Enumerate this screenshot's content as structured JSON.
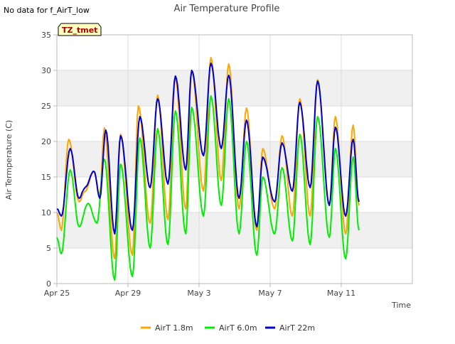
{
  "title": "Air Temperature Profile",
  "notice": "No data for f_AirT_low",
  "badge": "TZ_tmet",
  "colors": {
    "band": "#f0f0f0",
    "grid": "#dddddd",
    "axis": "#bbbbbb",
    "text": "#444444",
    "badge_bg": "#ffffc0",
    "badge_text": "#aa0000"
  },
  "chart_data": {
    "type": "line",
    "title": "Air Temperature Profile",
    "xlabel": "Time",
    "ylabel": "Air Termperature (C)",
    "ylim": [
      0,
      35
    ],
    "xlim": [
      "2024-04-25",
      "2024-05-15"
    ],
    "yticks": [
      0,
      5,
      10,
      15,
      20,
      25,
      30,
      35
    ],
    "xticks": [
      {
        "date": "2024-04-25",
        "label": "Apr 25"
      },
      {
        "date": "2024-04-29",
        "label": "Apr 29"
      },
      {
        "date": "2024-05-03",
        "label": "May 3"
      },
      {
        "date": "2024-05-07",
        "label": "May 7"
      },
      {
        "date": "2024-05-11",
        "label": "May 11"
      }
    ],
    "grid": true,
    "legend_position": "bottom",
    "series": [
      {
        "name": "AirT 1.8m",
        "color": "#ffa500",
        "points": [
          [
            "2024-04-25 00:00",
            10.0
          ],
          [
            "2024-04-25 06:00",
            7.5
          ],
          [
            "2024-04-25 16:00",
            20.3
          ],
          [
            "2024-04-26 06:00",
            11.5
          ],
          [
            "2024-04-26 14:00",
            13.0
          ],
          [
            "2024-04-27 02:00",
            15.8
          ],
          [
            "2024-04-27 10:00",
            12.5
          ],
          [
            "2024-04-27 16:00",
            21.9
          ],
          [
            "2024-04-28 06:00",
            3.5
          ],
          [
            "2024-04-28 14:00",
            21.0
          ],
          [
            "2024-04-29 06:00",
            4.0
          ],
          [
            "2024-04-29 14:00",
            25.0
          ],
          [
            "2024-04-30 06:00",
            8.5
          ],
          [
            "2024-04-30 16:00",
            26.5
          ],
          [
            "2024-05-01 06:00",
            9.0
          ],
          [
            "2024-05-01 16:00",
            29.0
          ],
          [
            "2024-05-02 06:00",
            10.5
          ],
          [
            "2024-05-02 14:00",
            30.0
          ],
          [
            "2024-05-03 06:00",
            13.0
          ],
          [
            "2024-05-03 16:00",
            31.8
          ],
          [
            "2024-05-04 06:00",
            14.5
          ],
          [
            "2024-05-04 16:00",
            30.9
          ],
          [
            "2024-05-05 06:00",
            10.5
          ],
          [
            "2024-05-05 16:00",
            24.7
          ],
          [
            "2024-05-06 06:00",
            7.5
          ],
          [
            "2024-05-06 14:00",
            19.0
          ],
          [
            "2024-05-07 06:00",
            10.5
          ],
          [
            "2024-05-07 16:00",
            20.8
          ],
          [
            "2024-05-08 06:00",
            9.5
          ],
          [
            "2024-05-08 16:00",
            26.0
          ],
          [
            "2024-05-09 06:00",
            9.5
          ],
          [
            "2024-05-09 16:00",
            28.7
          ],
          [
            "2024-05-10 08:00",
            11.0
          ],
          [
            "2024-05-10 16:00",
            23.5
          ],
          [
            "2024-05-11 06:00",
            7.0
          ],
          [
            "2024-05-11 16:00",
            22.3
          ],
          [
            "2024-05-12 00:00",
            11.0
          ]
        ]
      },
      {
        "name": "AirT 6.0m",
        "color": "#00ee00",
        "points": [
          [
            "2024-04-25 00:00",
            6.5
          ],
          [
            "2024-04-25 06:00",
            4.2
          ],
          [
            "2024-04-25 18:00",
            16.0
          ],
          [
            "2024-04-26 06:00",
            8.0
          ],
          [
            "2024-04-26 18:00",
            11.3
          ],
          [
            "2024-04-27 06:00",
            8.5
          ],
          [
            "2024-04-27 16:00",
            17.5
          ],
          [
            "2024-04-28 06:00",
            0.5
          ],
          [
            "2024-04-28 14:00",
            16.8
          ],
          [
            "2024-04-29 06:00",
            1.0
          ],
          [
            "2024-04-29 16:00",
            20.5
          ],
          [
            "2024-04-30 06:00",
            5.0
          ],
          [
            "2024-04-30 16:00",
            21.8
          ],
          [
            "2024-05-01 06:00",
            5.5
          ],
          [
            "2024-05-01 16:00",
            24.3
          ],
          [
            "2024-05-02 06:00",
            7.0
          ],
          [
            "2024-05-02 14:00",
            24.8
          ],
          [
            "2024-05-03 06:00",
            9.5
          ],
          [
            "2024-05-03 16:00",
            26.4
          ],
          [
            "2024-05-04 06:00",
            11.0
          ],
          [
            "2024-05-04 16:00",
            26.0
          ],
          [
            "2024-05-05 06:00",
            7.0
          ],
          [
            "2024-05-05 16:00",
            20.0
          ],
          [
            "2024-05-06 06:00",
            4.0
          ],
          [
            "2024-05-06 14:00",
            15.0
          ],
          [
            "2024-05-07 06:00",
            7.0
          ],
          [
            "2024-05-07 16:00",
            16.3
          ],
          [
            "2024-05-08 06:00",
            6.0
          ],
          [
            "2024-05-08 16:00",
            21.0
          ],
          [
            "2024-05-09 06:00",
            5.5
          ],
          [
            "2024-05-09 16:00",
            23.5
          ],
          [
            "2024-05-10 08:00",
            6.5
          ],
          [
            "2024-05-10 16:00",
            19.0
          ],
          [
            "2024-05-11 06:00",
            3.5
          ],
          [
            "2024-05-11 16:00",
            17.8
          ],
          [
            "2024-05-12 00:00",
            7.5
          ]
        ]
      },
      {
        "name": "AirT 22m",
        "color": "#0000cc",
        "points": [
          [
            "2024-04-25 00:00",
            10.5
          ],
          [
            "2024-04-25 06:00",
            9.5
          ],
          [
            "2024-04-25 18:00",
            19.0
          ],
          [
            "2024-04-26 06:00",
            12.0
          ],
          [
            "2024-04-26 14:00",
            13.5
          ],
          [
            "2024-04-27 02:00",
            15.8
          ],
          [
            "2024-04-27 10:00",
            12.0
          ],
          [
            "2024-04-27 18:00",
            21.6
          ],
          [
            "2024-04-28 06:00",
            7.0
          ],
          [
            "2024-04-28 14:00",
            20.8
          ],
          [
            "2024-04-29 06:00",
            7.5
          ],
          [
            "2024-04-29 16:00",
            23.5
          ],
          [
            "2024-04-30 06:00",
            13.5
          ],
          [
            "2024-04-30 16:00",
            26.0
          ],
          [
            "2024-05-01 06:00",
            14.0
          ],
          [
            "2024-05-01 16:00",
            29.2
          ],
          [
            "2024-05-02 06:00",
            16.0
          ],
          [
            "2024-05-02 14:00",
            30.0
          ],
          [
            "2024-05-03 06:00",
            18.0
          ],
          [
            "2024-05-03 16:00",
            31.0
          ],
          [
            "2024-05-04 06:00",
            19.0
          ],
          [
            "2024-05-04 16:00",
            29.3
          ],
          [
            "2024-05-05 06:00",
            12.0
          ],
          [
            "2024-05-05 16:00",
            23.0
          ],
          [
            "2024-05-06 06:00",
            8.0
          ],
          [
            "2024-05-06 14:00",
            17.8
          ],
          [
            "2024-05-07 06:00",
            11.5
          ],
          [
            "2024-05-07 16:00",
            19.8
          ],
          [
            "2024-05-08 06:00",
            13.0
          ],
          [
            "2024-05-08 16:00",
            25.5
          ],
          [
            "2024-05-09 06:00",
            13.5
          ],
          [
            "2024-05-09 16:00",
            28.5
          ],
          [
            "2024-05-10 08:00",
            11.0
          ],
          [
            "2024-05-10 16:00",
            22.0
          ],
          [
            "2024-05-11 06:00",
            9.5
          ],
          [
            "2024-05-11 16:00",
            20.3
          ],
          [
            "2024-05-12 00:00",
            11.5
          ]
        ]
      }
    ]
  }
}
